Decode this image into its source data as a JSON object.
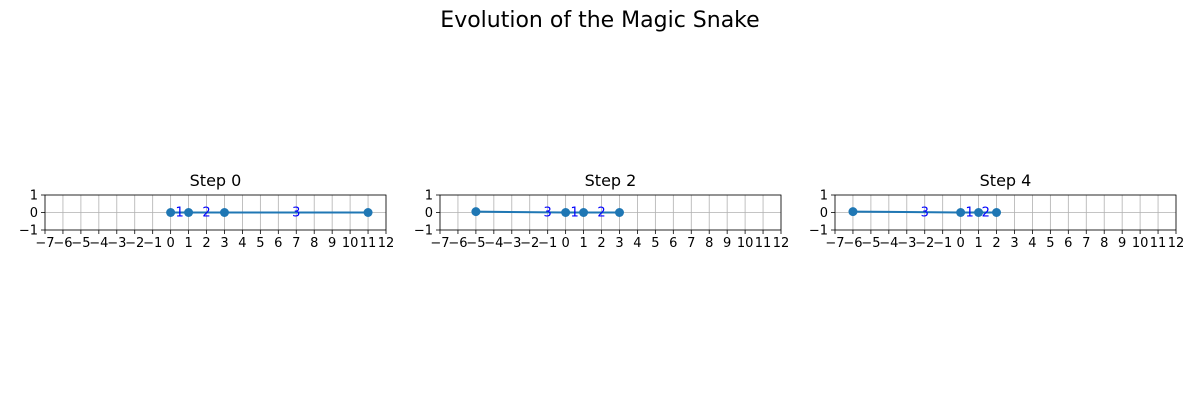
{
  "title": "Evolution of the Magic Snake",
  "chart_data": [
    {
      "type": "line",
      "title": "Step 0",
      "xlim": [
        -7,
        12
      ],
      "ylim": [
        -1,
        1
      ],
      "xticks": [
        -7,
        -6,
        -5,
        -4,
        -3,
        -2,
        -1,
        0,
        1,
        2,
        3,
        4,
        5,
        6,
        7,
        8,
        9,
        10,
        11,
        12
      ],
      "yticks": [
        -1,
        0,
        1
      ],
      "grid": true,
      "points": [
        {
          "x": 0,
          "y": 0
        },
        {
          "x": 1,
          "y": 0
        },
        {
          "x": 3,
          "y": 0
        },
        {
          "x": 11,
          "y": 0
        }
      ],
      "labels": [
        {
          "text": "1",
          "x": 0.5,
          "y": 0
        },
        {
          "text": "2",
          "x": 2,
          "y": 0
        },
        {
          "text": "3",
          "x": 7,
          "y": 0
        }
      ]
    },
    {
      "type": "line",
      "title": "Step 2",
      "xlim": [
        -7,
        12
      ],
      "ylim": [
        -1,
        1
      ],
      "xticks": [
        -7,
        -6,
        -5,
        -4,
        -3,
        -2,
        -1,
        0,
        1,
        2,
        3,
        4,
        5,
        6,
        7,
        8,
        9,
        10,
        11,
        12
      ],
      "yticks": [
        -1,
        0,
        1
      ],
      "grid": true,
      "points": [
        {
          "x": 3,
          "y": 0
        },
        {
          "x": 1,
          "y": 0
        },
        {
          "x": 0,
          "y": 0
        },
        {
          "x": -5,
          "y": 0.05
        }
      ],
      "labels": [
        {
          "text": "2",
          "x": 2,
          "y": 0
        },
        {
          "text": "1",
          "x": 0.5,
          "y": 0
        },
        {
          "text": "3",
          "x": -1,
          "y": 0
        }
      ]
    },
    {
      "type": "line",
      "title": "Step 4",
      "xlim": [
        -7,
        12
      ],
      "ylim": [
        -1,
        1
      ],
      "xticks": [
        -7,
        -6,
        -5,
        -4,
        -3,
        -2,
        -1,
        0,
        1,
        2,
        3,
        4,
        5,
        6,
        7,
        8,
        9,
        10,
        11,
        12
      ],
      "yticks": [
        -1,
        0,
        1
      ],
      "grid": true,
      "points": [
        {
          "x": 2,
          "y": 0
        },
        {
          "x": 1,
          "y": 0
        },
        {
          "x": 0,
          "y": 0
        },
        {
          "x": -6,
          "y": 0.05
        }
      ],
      "labels": [
        {
          "text": "2",
          "x": 1.4,
          "y": 0
        },
        {
          "text": "1",
          "x": 0.5,
          "y": 0
        },
        {
          "text": "3",
          "x": -2,
          "y": 0
        }
      ]
    }
  ],
  "colors": {
    "line": "#1f77b4",
    "label": "#0000ff",
    "grid": "#b0b0b0"
  }
}
